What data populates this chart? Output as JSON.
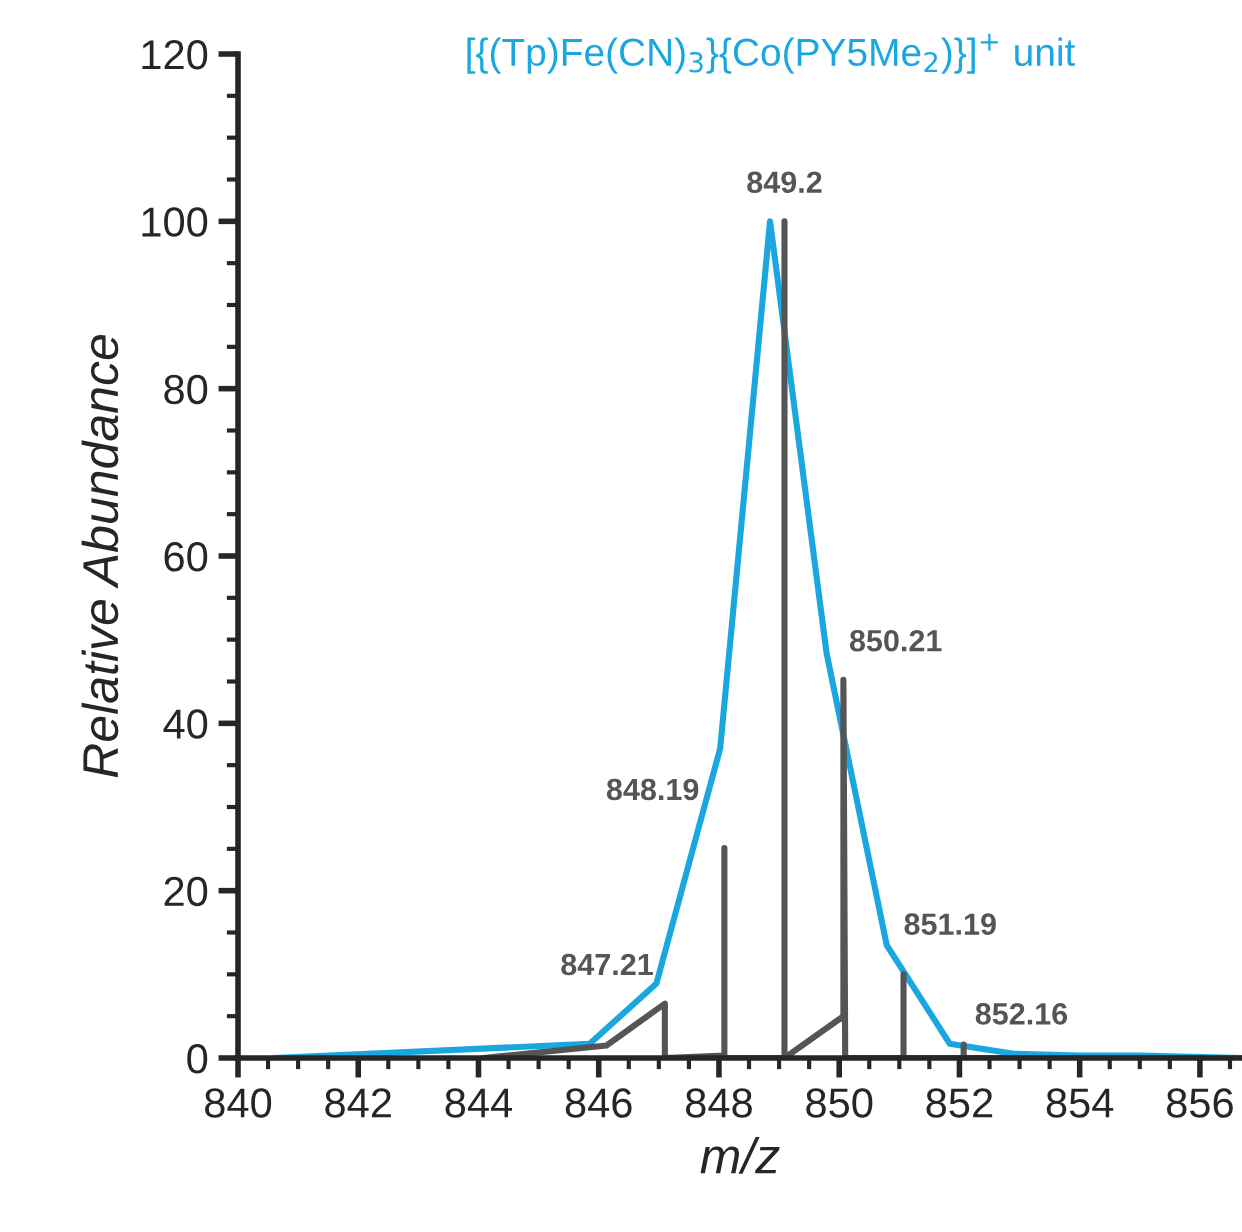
{
  "chart_data": {
    "type": "line",
    "title": "[{(Tp)Fe(CN)$_{3}$}{Co(PY5Me$_{2}$)}]$^{+}$ unit",
    "xlabel": "m/z",
    "ylabel": "Relative Abundance",
    "xlim": [
      840,
      856.7
    ],
    "xticks": [
      840,
      842,
      844,
      846,
      848,
      850,
      852,
      854,
      856
    ],
    "ylim": [
      0,
      120
    ],
    "yticks": [
      0,
      20,
      40,
      60,
      80,
      100,
      120
    ],
    "grid": false,
    "marker": "none",
    "line_style": "solid",
    "series": [
      {
        "color": "#1aa7e0",
        "x": [
          840.6,
          845.85,
          846.96,
          848.02,
          848.85,
          849.79,
          850.79,
          851.84,
          852.9,
          854.0,
          855.0,
          856.7
        ],
        "values": [
          0,
          1.7,
          8.9,
          37,
          100,
          48.4,
          13.5,
          1.7,
          0.5,
          0.3,
          0.3,
          0
        ]
      },
      {
        "color": "#555555",
        "x": [
          844.08,
          846.13,
          847.1,
          847.1,
          848.09,
          848.09,
          848.09,
          849.09,
          849.09,
          849.09,
          850.07,
          850.07,
          850.1,
          851.07,
          851.07,
          851.07,
          852.07,
          852.07,
          852.07,
          856.06
        ],
        "values": [
          0,
          1.5,
          6.5,
          0,
          0.3,
          25.1,
          0,
          0,
          100,
          0,
          5.0,
          45.2,
          0,
          0,
          10.0,
          0,
          0,
          1.6,
          0,
          0
        ]
      }
    ],
    "annotations": [
      {
        "text": "847.21",
        "x": 847.1,
        "y": 6.5
      },
      {
        "text": "848.19",
        "x": 848.09,
        "y": 25.1
      },
      {
        "text": "849.2",
        "x": 849.09,
        "y": 100
      },
      {
        "text": "850.21",
        "x": 850.07,
        "y": 45.2
      },
      {
        "text": "851.19",
        "x": 851.07,
        "y": 10.0
      },
      {
        "text": "852.16",
        "x": 852.07,
        "y": 1.6
      }
    ]
  }
}
